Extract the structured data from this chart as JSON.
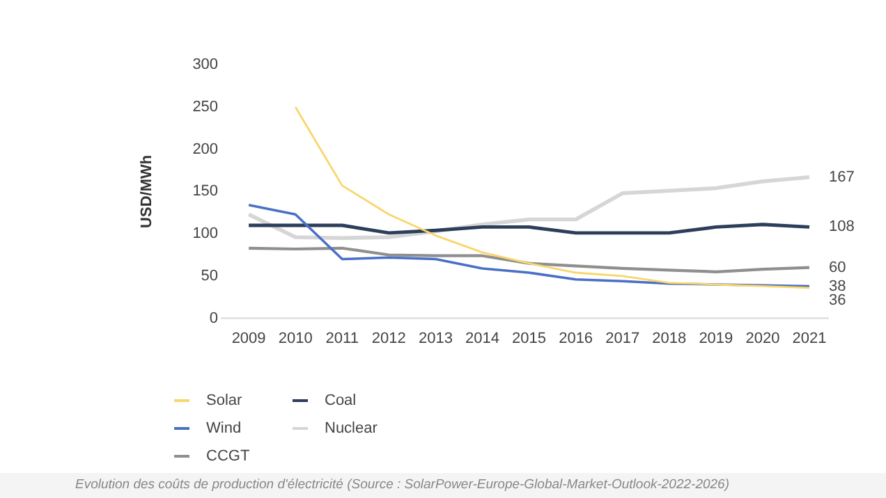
{
  "chart_data": {
    "type": "line",
    "ylabel": "USD/MWh",
    "categories": [
      "2009",
      "2010",
      "2011",
      "2012",
      "2013",
      "2014",
      "2015",
      "2016",
      "2017",
      "2018",
      "2019",
      "2020",
      "2021"
    ],
    "ylim": [
      0,
      300
    ],
    "yticks": [
      0,
      50,
      100,
      150,
      200,
      250,
      300
    ],
    "grid": false,
    "legend": "bottom left",
    "marker": "none",
    "line_style": "solid",
    "series": [
      {
        "name": "Solar",
        "color": "#f9d66b",
        "values": [
          null,
          250,
          157,
          123,
          98,
          78,
          65,
          54,
          50,
          42,
          40,
          38,
          36
        ],
        "value_labels": [
          null,
          null,
          null,
          null,
          null,
          null,
          null,
          null,
          null,
          null,
          null,
          null,
          "36"
        ]
      },
      {
        "name": "Wind",
        "color": "#4a6fc6",
        "values": [
          134,
          123,
          70,
          72,
          70,
          59,
          54,
          46,
          44,
          41,
          40,
          39,
          38
        ],
        "value_labels": [
          null,
          null,
          null,
          null,
          null,
          null,
          null,
          null,
          null,
          null,
          null,
          null,
          "38"
        ]
      },
      {
        "name": "CCGT",
        "color": "#8f8f8f",
        "values": [
          83,
          82,
          83,
          75,
          74,
          74,
          65,
          62,
          59,
          57,
          55,
          58,
          60
        ],
        "value_labels": [
          null,
          null,
          null,
          null,
          null,
          null,
          null,
          null,
          null,
          null,
          null,
          null,
          "60"
        ]
      },
      {
        "name": "Coal",
        "color": "#2c3e5a",
        "values": [
          110,
          110,
          110,
          101,
          104,
          108,
          108,
          101,
          101,
          101,
          108,
          111,
          108
        ],
        "value_labels": [
          null,
          null,
          null,
          null,
          null,
          null,
          null,
          null,
          null,
          null,
          null,
          null,
          "108"
        ]
      },
      {
        "name": "Nuclear",
        "color": "#d6d6d6",
        "values": [
          123,
          96,
          95,
          96,
          103,
          111,
          117,
          117,
          148,
          151,
          154,
          162,
          167
        ],
        "value_labels": [
          null,
          null,
          null,
          null,
          null,
          null,
          null,
          null,
          null,
          null,
          null,
          null,
          "167"
        ]
      }
    ],
    "annotations": [
      "Evolution des coûts de production d'électricité (Source : SolarPower-Europe-Global-Market-Outlook-2022-2026)"
    ]
  }
}
